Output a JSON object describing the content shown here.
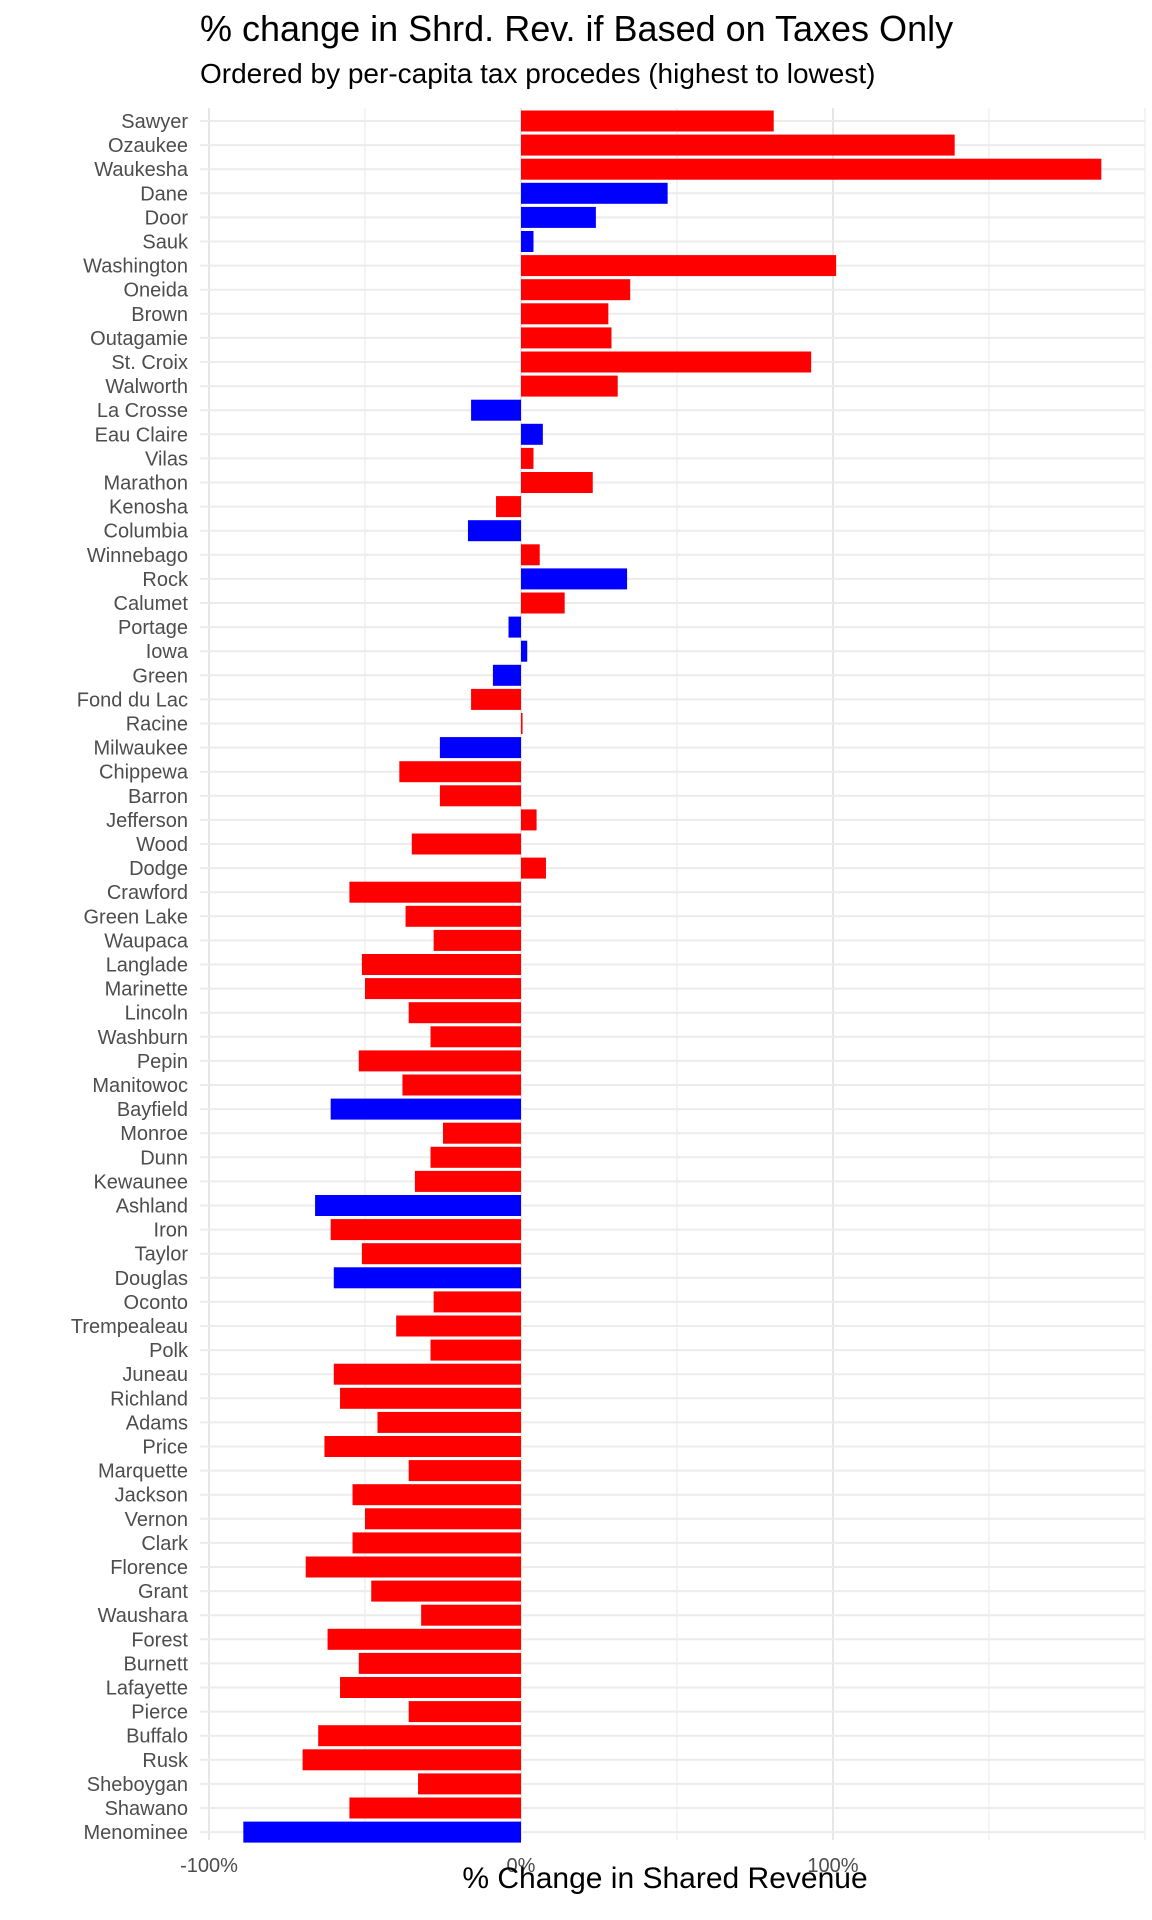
{
  "chart_data": {
    "type": "bar",
    "orientation": "horizontal",
    "title": "% change in Shrd. Rev. if Based on Taxes Only",
    "subtitle": "Ordered by per-capita tax procedes (highest to lowest)",
    "xlabel": "% Change in Shared Revenue",
    "ylabel": "",
    "xlim": [
      -100,
      200
    ],
    "xticks": [
      -100,
      0,
      100
    ],
    "xtick_labels": [
      "-100%",
      "0%",
      "100%"
    ],
    "grid": true,
    "legend": "none",
    "colors": {
      "red": "#ff0000",
      "blue": "#0000ff"
    },
    "bars": [
      {
        "label": "Sawyer",
        "value": 81,
        "color": "red"
      },
      {
        "label": "Ozaukee",
        "value": 139,
        "color": "red"
      },
      {
        "label": "Waukesha",
        "value": 186,
        "color": "red"
      },
      {
        "label": "Dane",
        "value": 47,
        "color": "blue"
      },
      {
        "label": "Door",
        "value": 24,
        "color": "blue"
      },
      {
        "label": "Sauk",
        "value": 4,
        "color": "blue"
      },
      {
        "label": "Washington",
        "value": 101,
        "color": "red"
      },
      {
        "label": "Oneida",
        "value": 35,
        "color": "red"
      },
      {
        "label": "Brown",
        "value": 28,
        "color": "red"
      },
      {
        "label": "Outagamie",
        "value": 29,
        "color": "red"
      },
      {
        "label": "St. Croix",
        "value": 93,
        "color": "red"
      },
      {
        "label": "Walworth",
        "value": 31,
        "color": "red"
      },
      {
        "label": "La Crosse",
        "value": -16,
        "color": "blue"
      },
      {
        "label": "Eau Claire",
        "value": 7,
        "color": "blue"
      },
      {
        "label": "Vilas",
        "value": 4,
        "color": "red"
      },
      {
        "label": "Marathon",
        "value": 23,
        "color": "red"
      },
      {
        "label": "Kenosha",
        "value": -8,
        "color": "red"
      },
      {
        "label": "Columbia",
        "value": -17,
        "color": "blue"
      },
      {
        "label": "Winnebago",
        "value": 6,
        "color": "red"
      },
      {
        "label": "Rock",
        "value": 34,
        "color": "blue"
      },
      {
        "label": "Calumet",
        "value": 14,
        "color": "red"
      },
      {
        "label": "Portage",
        "value": -4,
        "color": "blue"
      },
      {
        "label": "Iowa",
        "value": 2,
        "color": "blue"
      },
      {
        "label": "Green",
        "value": -9,
        "color": "blue"
      },
      {
        "label": "Fond du Lac",
        "value": -16,
        "color": "red"
      },
      {
        "label": "Racine",
        "value": 0.5,
        "color": "red"
      },
      {
        "label": "Milwaukee",
        "value": -26,
        "color": "blue"
      },
      {
        "label": "Chippewa",
        "value": -39,
        "color": "red"
      },
      {
        "label": "Barron",
        "value": -26,
        "color": "red"
      },
      {
        "label": "Jefferson",
        "value": 5,
        "color": "red"
      },
      {
        "label": "Wood",
        "value": -35,
        "color": "red"
      },
      {
        "label": "Dodge",
        "value": 8,
        "color": "red"
      },
      {
        "label": "Crawford",
        "value": -55,
        "color": "red"
      },
      {
        "label": "Green Lake",
        "value": -37,
        "color": "red"
      },
      {
        "label": "Waupaca",
        "value": -28,
        "color": "red"
      },
      {
        "label": "Langlade",
        "value": -51,
        "color": "red"
      },
      {
        "label": "Marinette",
        "value": -50,
        "color": "red"
      },
      {
        "label": "Lincoln",
        "value": -36,
        "color": "red"
      },
      {
        "label": "Washburn",
        "value": -29,
        "color": "red"
      },
      {
        "label": "Pepin",
        "value": -52,
        "color": "red"
      },
      {
        "label": "Manitowoc",
        "value": -38,
        "color": "red"
      },
      {
        "label": "Bayfield",
        "value": -61,
        "color": "blue"
      },
      {
        "label": "Monroe",
        "value": -25,
        "color": "red"
      },
      {
        "label": "Dunn",
        "value": -29,
        "color": "red"
      },
      {
        "label": "Kewaunee",
        "value": -34,
        "color": "red"
      },
      {
        "label": "Ashland",
        "value": -66,
        "color": "blue"
      },
      {
        "label": "Iron",
        "value": -61,
        "color": "red"
      },
      {
        "label": "Taylor",
        "value": -51,
        "color": "red"
      },
      {
        "label": "Douglas",
        "value": -60,
        "color": "blue"
      },
      {
        "label": "Oconto",
        "value": -28,
        "color": "red"
      },
      {
        "label": "Trempealeau",
        "value": -40,
        "color": "red"
      },
      {
        "label": "Polk",
        "value": -29,
        "color": "red"
      },
      {
        "label": "Juneau",
        "value": -60,
        "color": "red"
      },
      {
        "label": "Richland",
        "value": -58,
        "color": "red"
      },
      {
        "label": "Adams",
        "value": -46,
        "color": "red"
      },
      {
        "label": "Price",
        "value": -63,
        "color": "red"
      },
      {
        "label": "Marquette",
        "value": -36,
        "color": "red"
      },
      {
        "label": "Jackson",
        "value": -54,
        "color": "red"
      },
      {
        "label": "Vernon",
        "value": -50,
        "color": "red"
      },
      {
        "label": "Clark",
        "value": -54,
        "color": "red"
      },
      {
        "label": "Florence",
        "value": -69,
        "color": "red"
      },
      {
        "label": "Grant",
        "value": -48,
        "color": "red"
      },
      {
        "label": "Waushara",
        "value": -32,
        "color": "red"
      },
      {
        "label": "Forest",
        "value": -62,
        "color": "red"
      },
      {
        "label": "Burnett",
        "value": -52,
        "color": "red"
      },
      {
        "label": "Lafayette",
        "value": -58,
        "color": "red"
      },
      {
        "label": "Pierce",
        "value": -36,
        "color": "red"
      },
      {
        "label": "Buffalo",
        "value": -65,
        "color": "red"
      },
      {
        "label": "Rusk",
        "value": -70,
        "color": "red"
      },
      {
        "label": "Sheboygan",
        "value": -33,
        "color": "red"
      },
      {
        "label": "Shawano",
        "value": -55,
        "color": "red"
      },
      {
        "label": "Menominee",
        "value": -89,
        "color": "blue"
      }
    ]
  }
}
